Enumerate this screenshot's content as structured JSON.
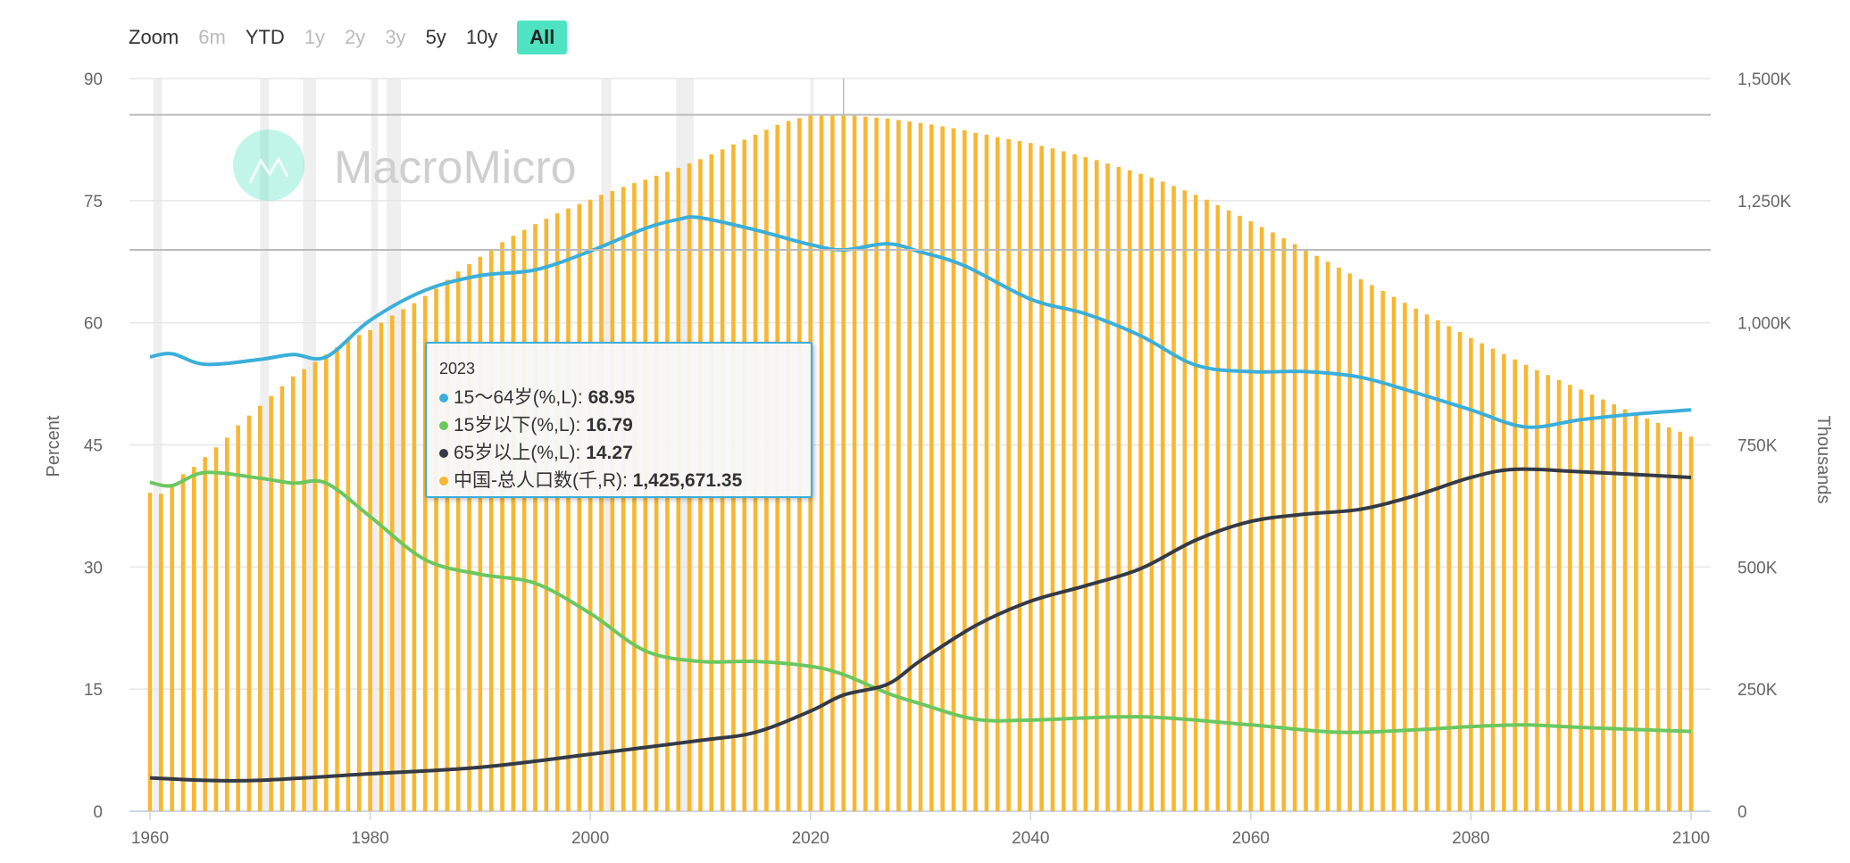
{
  "zoom": {
    "label": "Zoom",
    "buttons": [
      {
        "label": "6m",
        "enabled": false
      },
      {
        "label": "YTD",
        "enabled": true
      },
      {
        "label": "1y",
        "enabled": false
      },
      {
        "label": "2y",
        "enabled": false
      },
      {
        "label": "3y",
        "enabled": false
      },
      {
        "label": "5y",
        "enabled": true
      },
      {
        "label": "10y",
        "enabled": true
      },
      {
        "label": "All",
        "enabled": true,
        "active": true
      }
    ]
  },
  "watermark": "MacroMicro",
  "tooltip": {
    "year": "2023",
    "rows": [
      {
        "label": "15～64岁(%,L): ",
        "value": "68.95",
        "color": "#3bafda"
      },
      {
        "label": "15岁以下(%,L): ",
        "value": "16.79",
        "color": "#6cc75e"
      },
      {
        "label": "65岁以上(%,L): ",
        "value": "14.27",
        "color": "#343a46"
      },
      {
        "label": "中国-总人口数(千,R): ",
        "value": "1,425,671.35",
        "color": "#f7b733"
      }
    ]
  },
  "chart_data": {
    "type": "bar+line",
    "ylabel": "Percent",
    "y2label": "Thousands",
    "xlim": [
      1960,
      2100
    ],
    "ylim": [
      0,
      90
    ],
    "y2lim": [
      0,
      1500000
    ],
    "x_ticks": [
      "1960",
      "1980",
      "2000",
      "2020",
      "2040",
      "2060",
      "2080",
      "2100"
    ],
    "y_ticks": [
      "0",
      "15",
      "30",
      "45",
      "60",
      "75",
      "90"
    ],
    "y2_ticks": [
      "0",
      "250K",
      "500K",
      "750K",
      "1,000K",
      "1,250K",
      "1,500K"
    ],
    "shaded_periods": [
      [
        1960.3,
        1961.1
      ],
      [
        1970,
        1970.8
      ],
      [
        1973.9,
        1975.1
      ],
      [
        1980.1,
        1980.7
      ],
      [
        1981.5,
        1982.8
      ],
      [
        2001,
        2001.9
      ],
      [
        2007.8,
        2009.4
      ],
      [
        2020,
        2020.3
      ]
    ],
    "crosshair": {
      "year": 2023,
      "left_value": 68.95,
      "right_value": 1425671.35
    },
    "series": [
      {
        "name": "中国-总人口数(千,R)",
        "type": "bar",
        "axis": "right",
        "color": "#f7b733",
        "start_year": 1960,
        "values": [
          652000,
          650000,
          665000,
          690000,
          705000,
          725000,
          745000,
          765000,
          790000,
          810000,
          830000,
          850000,
          870000,
          890000,
          905000,
          920000,
          935000,
          950000,
          963000,
          975000,
          985000,
          1000000,
          1015000,
          1028000,
          1040000,
          1055000,
          1070000,
          1088000,
          1105000,
          1120000,
          1135000,
          1150000,
          1165000,
          1178000,
          1190000,
          1202000,
          1213000,
          1224000,
          1234000,
          1243000,
          1252000,
          1262000,
          1270000,
          1278000,
          1286000,
          1293000,
          1301000,
          1309000,
          1317000,
          1326000,
          1335000,
          1345000,
          1355000,
          1365000,
          1375000,
          1385000,
          1395000,
          1405000,
          1413000,
          1419000,
          1424000,
          1426000,
          1426000,
          1425671,
          1424000,
          1422000,
          1420000,
          1418000,
          1415000,
          1412000,
          1409000,
          1406000,
          1402000,
          1398000,
          1394000,
          1389000,
          1385000,
          1380000,
          1376000,
          1372000,
          1368000,
          1362000,
          1357000,
          1351000,
          1345000,
          1339000,
          1333000,
          1326000,
          1319000,
          1312000,
          1305000,
          1297000,
          1289000,
          1280000,
          1271000,
          1262000,
          1252000,
          1241000,
          1230000,
          1219000,
          1208000,
          1196000,
          1185000,
          1173000,
          1161000,
          1149000,
          1137000,
          1125000,
          1113000,
          1101000,
          1089000,
          1077000,
          1065000,
          1053000,
          1041000,
          1029000,
          1017000,
          1005000,
          993000,
          981000,
          969000,
          958000,
          947000,
          936000,
          925000,
          914000,
          903000,
          893000,
          883000,
          873000,
          863000,
          853000,
          843000,
          833000,
          823000,
          813000,
          804000,
          795000,
          786000,
          777000,
          767000
        ]
      },
      {
        "name": "15～64岁(%,L)",
        "type": "line",
        "axis": "left",
        "color": "#3bafda",
        "points": [
          [
            1960,
            55.8
          ],
          [
            1962,
            56.2
          ],
          [
            1965,
            54.9
          ],
          [
            1970,
            55.5
          ],
          [
            1973,
            56.1
          ],
          [
            1976,
            55.8
          ],
          [
            1980,
            60.3
          ],
          [
            1985,
            64.0
          ],
          [
            1990,
            65.8
          ],
          [
            1995,
            66.5
          ],
          [
            2000,
            68.8
          ],
          [
            2005,
            71.6
          ],
          [
            2008,
            72.7
          ],
          [
            2010,
            72.9
          ],
          [
            2015,
            71.4
          ],
          [
            2020,
            69.6
          ],
          [
            2023,
            68.95
          ],
          [
            2027,
            69.7
          ],
          [
            2030,
            68.7
          ],
          [
            2034,
            67.0
          ],
          [
            2040,
            62.9
          ],
          [
            2045,
            61.1
          ],
          [
            2050,
            58.4
          ],
          [
            2055,
            54.8
          ],
          [
            2060,
            54.0
          ],
          [
            2065,
            54.0
          ],
          [
            2070,
            53.3
          ],
          [
            2075,
            51.4
          ],
          [
            2080,
            49.3
          ],
          [
            2085,
            47.2
          ],
          [
            2090,
            48.1
          ],
          [
            2095,
            48.8
          ],
          [
            2100,
            49.3
          ]
        ]
      },
      {
        "name": "15岁以下(%,L)",
        "type": "line",
        "axis": "left",
        "color": "#6cc75e",
        "points": [
          [
            1960,
            40.4
          ],
          [
            1962,
            40.0
          ],
          [
            1965,
            41.6
          ],
          [
            1970,
            40.9
          ],
          [
            1973,
            40.3
          ],
          [
            1976,
            40.3
          ],
          [
            1980,
            36.2
          ],
          [
            1985,
            30.9
          ],
          [
            1990,
            29.1
          ],
          [
            1995,
            28.0
          ],
          [
            2000,
            24.3
          ],
          [
            2005,
            19.7
          ],
          [
            2010,
            18.4
          ],
          [
            2015,
            18.4
          ],
          [
            2020,
            17.8
          ],
          [
            2023,
            16.79
          ],
          [
            2027,
            14.5
          ],
          [
            2030,
            13.2
          ],
          [
            2035,
            11.3
          ],
          [
            2040,
            11.2
          ],
          [
            2050,
            11.6
          ],
          [
            2060,
            10.6
          ],
          [
            2068,
            9.7
          ],
          [
            2075,
            10.0
          ],
          [
            2080,
            10.4
          ],
          [
            2085,
            10.6
          ],
          [
            2090,
            10.3
          ],
          [
            2100,
            9.8
          ]
        ]
      },
      {
        "name": "65岁以上(%,L)",
        "type": "line",
        "axis": "left",
        "color": "#343a46",
        "points": [
          [
            1960,
            4.1
          ],
          [
            1965,
            3.8
          ],
          [
            1970,
            3.8
          ],
          [
            1980,
            4.6
          ],
          [
            1990,
            5.4
          ],
          [
            2000,
            7.0
          ],
          [
            2010,
            8.7
          ],
          [
            2015,
            9.7
          ],
          [
            2020,
            12.3
          ],
          [
            2023,
            14.27
          ],
          [
            2027,
            15.6
          ],
          [
            2030,
            18.5
          ],
          [
            2035,
            22.8
          ],
          [
            2040,
            25.8
          ],
          [
            2045,
            27.7
          ],
          [
            2050,
            29.8
          ],
          [
            2055,
            33.3
          ],
          [
            2060,
            35.6
          ],
          [
            2065,
            36.5
          ],
          [
            2070,
            37.1
          ],
          [
            2075,
            38.8
          ],
          [
            2080,
            41.0
          ],
          [
            2084,
            42.0
          ],
          [
            2090,
            41.7
          ],
          [
            2100,
            41.0
          ]
        ]
      }
    ]
  }
}
